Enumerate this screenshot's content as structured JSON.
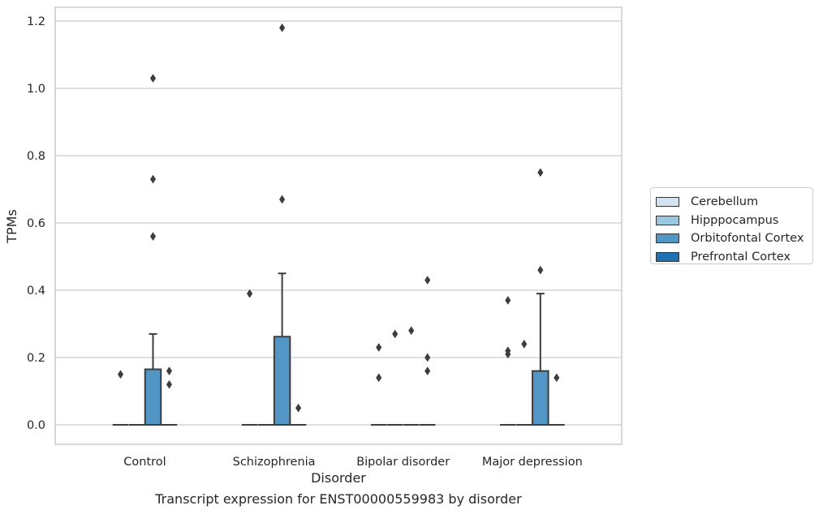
{
  "chart_data": {
    "type": "box",
    "xlabel": "Disorder",
    "ylabel": "TPMs",
    "caption": "Transcript expression for ENST00000559983 by disorder",
    "ylim": [
      -0.06,
      1.24
    ],
    "yticks": [
      0.0,
      0.2,
      0.4,
      0.6,
      0.8,
      1.0,
      1.2
    ],
    "ytick_labels": [
      "0.0",
      "0.2",
      "0.4",
      "0.6",
      "0.8",
      "1.0",
      "1.2"
    ],
    "grid": true,
    "legend_position": "right",
    "categories": [
      "Control",
      "Schizophrenia",
      "Bipolar disorder",
      "Major depression"
    ],
    "series": [
      {
        "name": "Cerebellum",
        "color": "#d2e3f3",
        "boxes": [
          {
            "category": "Control",
            "q1": 0,
            "median": 0,
            "q3": 0,
            "whisker_low": 0,
            "whisker_high": 0,
            "outliers": [
              0.15
            ]
          },
          {
            "category": "Schizophrenia",
            "q1": 0,
            "median": 0,
            "q3": 0,
            "whisker_low": 0,
            "whisker_high": 0,
            "outliers": [
              0.39
            ]
          },
          {
            "category": "Bipolar disorder",
            "q1": 0,
            "median": 0,
            "q3": 0,
            "whisker_low": 0,
            "whisker_high": 0,
            "outliers": [
              0.23,
              0.14
            ]
          },
          {
            "category": "Major depression",
            "q1": 0,
            "median": 0,
            "q3": 0,
            "whisker_low": 0,
            "whisker_high": 0,
            "outliers": [
              0.37,
              0.22,
              0.21
            ]
          }
        ]
      },
      {
        "name": "Hipppocampus",
        "color": "#9ac8e0",
        "boxes": [
          {
            "category": "Control",
            "q1": 0,
            "median": 0,
            "q3": 0,
            "whisker_low": 0,
            "whisker_high": 0,
            "outliers": []
          },
          {
            "category": "Schizophrenia",
            "q1": 0,
            "median": 0,
            "q3": 0,
            "whisker_low": 0,
            "whisker_high": 0,
            "outliers": []
          },
          {
            "category": "Bipolar disorder",
            "q1": 0,
            "median": 0,
            "q3": 0,
            "whisker_low": 0,
            "whisker_high": 0,
            "outliers": [
              0.27
            ]
          },
          {
            "category": "Major depression",
            "q1": 0,
            "median": 0,
            "q3": 0,
            "whisker_low": 0,
            "whisker_high": 0,
            "outliers": [
              0.24
            ]
          }
        ]
      },
      {
        "name": "Orbitofontal Cortex",
        "color": "#5296c5",
        "boxes": [
          {
            "category": "Control",
            "q1": 0,
            "median": 0,
            "q3": 0.165,
            "whisker_low": 0,
            "whisker_high": 0.27,
            "outliers": [
              0.56,
              0.73,
              1.03
            ]
          },
          {
            "category": "Schizophrenia",
            "q1": 0,
            "median": 0,
            "q3": 0.262,
            "whisker_low": 0,
            "whisker_high": 0.45,
            "outliers": [
              0.67,
              1.18
            ]
          },
          {
            "category": "Bipolar disorder",
            "q1": 0,
            "median": 0,
            "q3": 0,
            "whisker_low": 0,
            "whisker_high": 0,
            "outliers": [
              0.28
            ]
          },
          {
            "category": "Major depression",
            "q1": 0,
            "median": 0,
            "q3": 0.16,
            "whisker_low": 0,
            "whisker_high": 0.39,
            "outliers": [
              0.46,
              0.75
            ]
          }
        ]
      },
      {
        "name": "Prefrontal Cortex",
        "color": "#2070b4",
        "boxes": [
          {
            "category": "Control",
            "q1": 0,
            "median": 0,
            "q3": 0,
            "whisker_low": 0,
            "whisker_high": 0,
            "outliers": [
              0.16,
              0.12
            ]
          },
          {
            "category": "Schizophrenia",
            "q1": 0,
            "median": 0,
            "q3": 0,
            "whisker_low": 0,
            "whisker_high": 0,
            "outliers": [
              0.05
            ]
          },
          {
            "category": "Bipolar disorder",
            "q1": 0,
            "median": 0,
            "q3": 0,
            "whisker_low": 0,
            "whisker_high": 0,
            "outliers": [
              0.43,
              0.2,
              0.16
            ]
          },
          {
            "category": "Major depression",
            "q1": 0,
            "median": 0,
            "q3": 0,
            "whisker_low": 0,
            "whisker_high": 0,
            "outliers": [
              0.14
            ]
          }
        ]
      }
    ]
  }
}
